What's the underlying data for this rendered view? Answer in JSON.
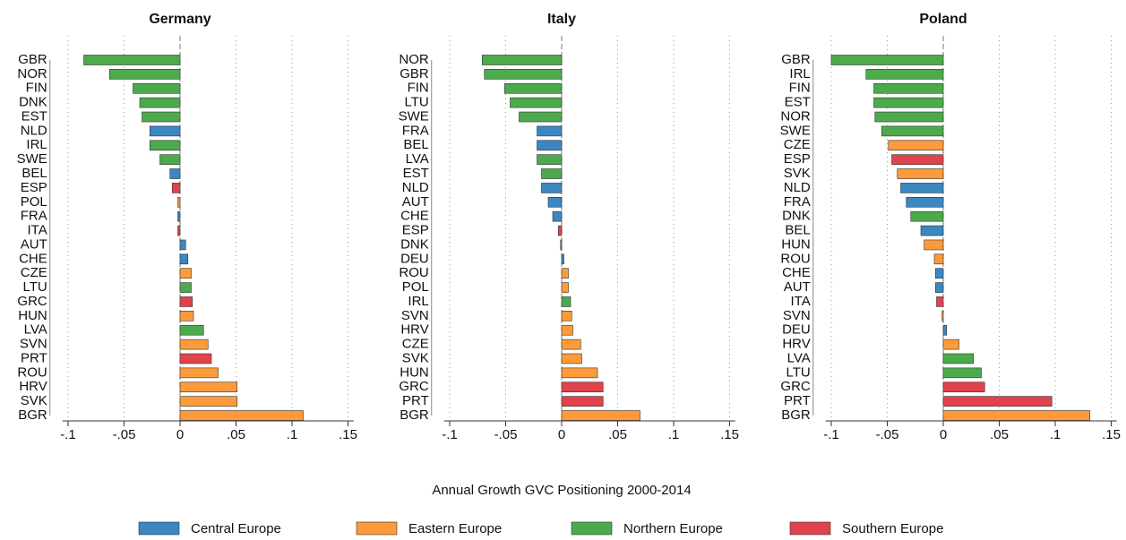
{
  "chart_data": [
    {
      "type": "bar",
      "orientation": "horizontal",
      "title": "Germany",
      "categories": [
        "GBR",
        "NOR",
        "FIN",
        "DNK",
        "EST",
        "NLD",
        "IRL",
        "SWE",
        "BEL",
        "ESP",
        "POL",
        "FRA",
        "ITA",
        "AUT",
        "CHE",
        "CZE",
        "LTU",
        "GRC",
        "HUN",
        "LVA",
        "SVN",
        "PRT",
        "ROU",
        "HRV",
        "SVK",
        "BGR"
      ],
      "values": [
        -0.086,
        -0.063,
        -0.042,
        -0.036,
        -0.034,
        -0.027,
        -0.027,
        -0.018,
        -0.009,
        -0.007,
        -0.002,
        -0.002,
        -0.002,
        0.005,
        0.007,
        0.01,
        0.01,
        0.011,
        0.012,
        0.021,
        0.025,
        0.028,
        0.034,
        0.051,
        0.051,
        0.11
      ],
      "regions": [
        "Northern Europe",
        "Northern Europe",
        "Northern Europe",
        "Northern Europe",
        "Northern Europe",
        "Central Europe",
        "Northern Europe",
        "Northern Europe",
        "Central Europe",
        "Southern Europe",
        "Eastern Europe",
        "Central Europe",
        "Southern Europe",
        "Central Europe",
        "Central Europe",
        "Eastern Europe",
        "Northern Europe",
        "Southern Europe",
        "Eastern Europe",
        "Northern Europe",
        "Eastern Europe",
        "Southern Europe",
        "Eastern Europe",
        "Eastern Europe",
        "Eastern Europe",
        "Eastern Europe"
      ],
      "xlim": [
        -0.105,
        0.155
      ],
      "xticks": [
        {
          "value": -0.1,
          "label": "-.1"
        },
        {
          "value": -0.05,
          "label": "-.05"
        },
        0,
        {
          "value": 0.05,
          "label": ".05"
        },
        {
          "value": 0.1,
          "label": ".1"
        },
        {
          "value": 0.15,
          "label": ".15"
        }
      ],
      "grid": true
    },
    {
      "type": "bar",
      "orientation": "horizontal",
      "title": "Italy",
      "categories": [
        "NOR",
        "GBR",
        "FIN",
        "LTU",
        "SWE",
        "FRA",
        "BEL",
        "LVA",
        "EST",
        "NLD",
        "AUT",
        "CHE",
        "ESP",
        "DNK",
        "DEU",
        "ROU",
        "POL",
        "IRL",
        "SVN",
        "HRV",
        "CZE",
        "SVK",
        "HUN",
        "GRC",
        "PRT",
        "BGR"
      ],
      "values": [
        -0.071,
        -0.069,
        -0.051,
        -0.046,
        -0.038,
        -0.022,
        -0.022,
        -0.022,
        -0.018,
        -0.018,
        -0.012,
        -0.008,
        -0.003,
        -0.001,
        0.002,
        0.006,
        0.006,
        0.008,
        0.009,
        0.01,
        0.017,
        0.018,
        0.032,
        0.037,
        0.037,
        0.07
      ],
      "regions": [
        "Northern Europe",
        "Northern Europe",
        "Northern Europe",
        "Northern Europe",
        "Northern Europe",
        "Central Europe",
        "Central Europe",
        "Northern Europe",
        "Northern Europe",
        "Central Europe",
        "Central Europe",
        "Central Europe",
        "Southern Europe",
        "Northern Europe",
        "Central Europe",
        "Eastern Europe",
        "Eastern Europe",
        "Northern Europe",
        "Eastern Europe",
        "Eastern Europe",
        "Eastern Europe",
        "Eastern Europe",
        "Eastern Europe",
        "Southern Europe",
        "Southern Europe",
        "Eastern Europe"
      ],
      "xlim": [
        -0.105,
        0.155
      ],
      "xticks": [
        {
          "value": -0.1,
          "label": "-.1"
        },
        {
          "value": -0.05,
          "label": "-.05"
        },
        0,
        {
          "value": 0.05,
          "label": ".05"
        },
        {
          "value": 0.1,
          "label": ".1"
        },
        {
          "value": 0.15,
          "label": ".15"
        }
      ],
      "grid": true
    },
    {
      "type": "bar",
      "orientation": "horizontal",
      "title": "Poland",
      "categories": [
        "GBR",
        "IRL",
        "FIN",
        "EST",
        "NOR",
        "SWE",
        "CZE",
        "ESP",
        "SVK",
        "NLD",
        "FRA",
        "DNK",
        "BEL",
        "HUN",
        "ROU",
        "CHE",
        "AUT",
        "ITA",
        "SVN",
        "DEU",
        "HRV",
        "LVA",
        "LTU",
        "GRC",
        "PRT",
        "BGR"
      ],
      "values": [
        -0.1,
        -0.069,
        -0.062,
        -0.062,
        -0.061,
        -0.055,
        -0.049,
        -0.046,
        -0.041,
        -0.038,
        -0.033,
        -0.029,
        -0.02,
        -0.017,
        -0.008,
        -0.007,
        -0.007,
        -0.006,
        -0.001,
        0.003,
        0.014,
        0.027,
        0.034,
        0.037,
        0.097,
        0.131
      ],
      "regions": [
        "Northern Europe",
        "Northern Europe",
        "Northern Europe",
        "Northern Europe",
        "Northern Europe",
        "Northern Europe",
        "Eastern Europe",
        "Southern Europe",
        "Eastern Europe",
        "Central Europe",
        "Central Europe",
        "Northern Europe",
        "Central Europe",
        "Eastern Europe",
        "Eastern Europe",
        "Central Europe",
        "Central Europe",
        "Southern Europe",
        "Eastern Europe",
        "Central Europe",
        "Eastern Europe",
        "Northern Europe",
        "Northern Europe",
        "Southern Europe",
        "Southern Europe",
        "Eastern Europe"
      ],
      "xlim": [
        -0.105,
        0.155
      ],
      "xticks": [
        {
          "value": -0.1,
          "label": "-.1"
        },
        {
          "value": -0.05,
          "label": "-.05"
        },
        0,
        {
          "value": 0.05,
          "label": ".05"
        },
        {
          "value": 0.1,
          "label": ".1"
        },
        {
          "value": 0.15,
          "label": ".15"
        }
      ],
      "grid": true
    }
  ],
  "x_label": "Annual Growth GVC Positioning 2000-2014",
  "legend": [
    {
      "name": "Central Europe",
      "color": "#3b87c2"
    },
    {
      "name": "Eastern Europe",
      "color": "#fd9a3a"
    },
    {
      "name": "Northern Europe",
      "color": "#4caa4c"
    },
    {
      "name": "Southern Europe",
      "color": "#e0434b"
    }
  ]
}
